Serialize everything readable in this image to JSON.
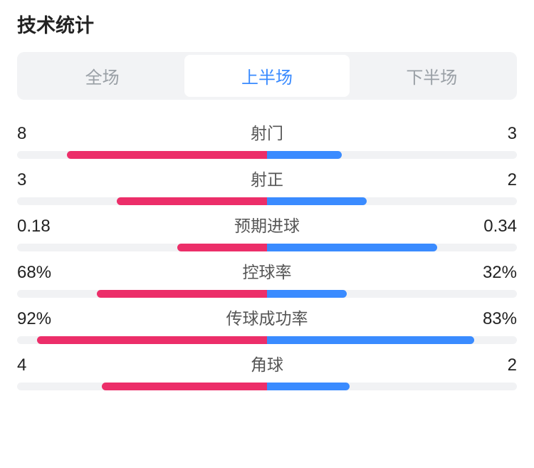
{
  "title": "技术统计",
  "colors": {
    "tab_active_text": "#3a8bff",
    "tab_inactive_text": "#9aa0a6",
    "tab_bg": "#f2f3f5",
    "left_bar": "#ec2e69",
    "right_bar": "#3a8bff",
    "track": "#f1f2f4",
    "text": "#222222"
  },
  "tabs": [
    {
      "label": "全场",
      "active": false
    },
    {
      "label": "上半场",
      "active": true
    },
    {
      "label": "下半场",
      "active": false
    }
  ],
  "stats": [
    {
      "label": "射门",
      "left_value": "8",
      "right_value": "3",
      "left_pct": 40,
      "right_pct": 15
    },
    {
      "label": "射正",
      "left_value": "3",
      "right_value": "2",
      "left_pct": 30,
      "right_pct": 20
    },
    {
      "label": "预期进球",
      "left_value": "0.18",
      "right_value": "0.34",
      "left_pct": 18,
      "right_pct": 34
    },
    {
      "label": "控球率",
      "left_value": "68%",
      "right_value": "32%",
      "left_pct": 34,
      "right_pct": 16
    },
    {
      "label": "传球成功率",
      "left_value": "92%",
      "right_value": "83%",
      "left_pct": 46,
      "right_pct": 41.5
    },
    {
      "label": "角球",
      "left_value": "4",
      "right_value": "2",
      "left_pct": 33,
      "right_pct": 16.5
    }
  ]
}
